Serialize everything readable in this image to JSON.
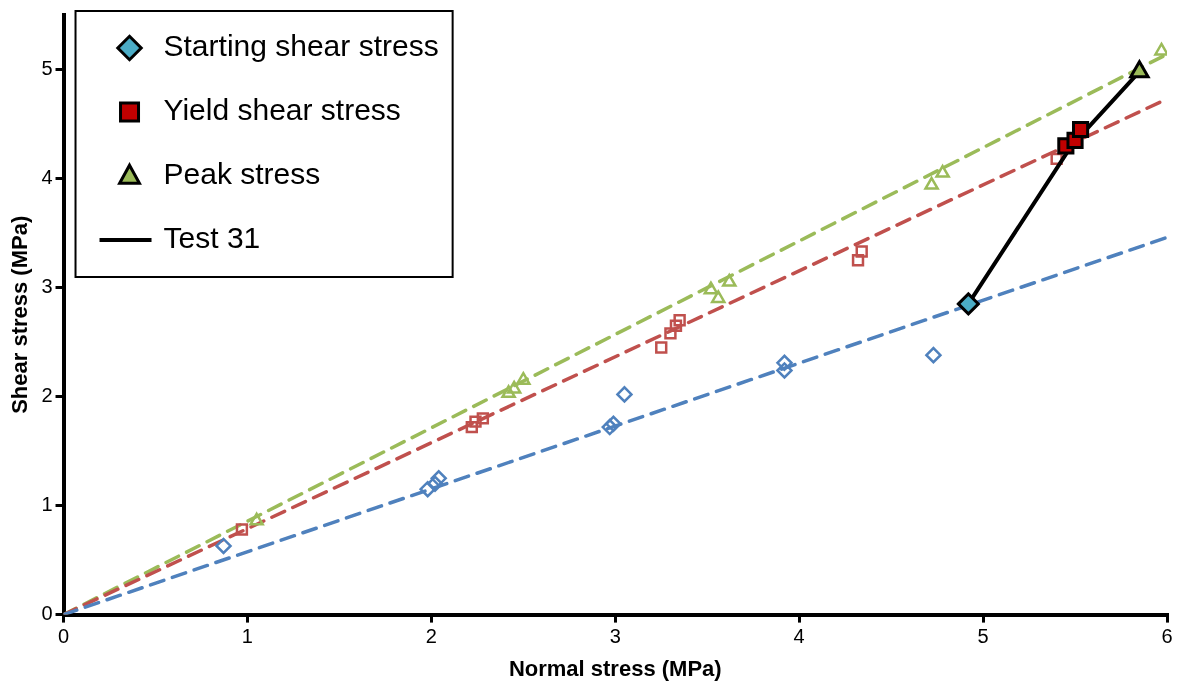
{
  "chart_data": {
    "type": "scatter",
    "xlabel": "Normal stress (MPa)",
    "ylabel": "Shear stress (MPa)",
    "xlim": [
      0,
      6
    ],
    "ylim": [
      0,
      5.5
    ],
    "xticks": [
      0,
      1,
      2,
      3,
      4,
      5,
      6
    ],
    "yticks": [
      0,
      1,
      2,
      3,
      4,
      5
    ],
    "grid": false,
    "legend": "top left",
    "series": [
      {
        "name": "Starting shear stress",
        "color": "#4bacc6",
        "marker": "diamond",
        "x": [
          4.92
        ],
        "values": [
          2.85
        ]
      },
      {
        "name": "Yield shear stress",
        "color": "#c00000",
        "marker": "square",
        "x": [
          5.45,
          5.5,
          5.53
        ],
        "values": [
          4.3,
          4.35,
          4.45
        ]
      },
      {
        "name": "Peak stress",
        "color": "#9bbb59",
        "marker": "triangle",
        "x": [
          5.85
        ],
        "values": [
          4.98
        ]
      },
      {
        "name": "Test 31",
        "type": "line",
        "color": "#000000",
        "marker": "none",
        "line_style": "solid",
        "x": [
          4.92,
          5.48,
          5.85
        ],
        "values": [
          2.85,
          4.3,
          4.98
        ]
      },
      {
        "color": "#4f81bd",
        "marker": "diamond",
        "x": [
          0.87,
          1.98,
          2.02,
          2.04,
          2.97,
          2.99,
          3.05,
          3.92,
          3.92,
          4.73
        ],
        "values": [
          0.63,
          1.15,
          1.2,
          1.25,
          1.72,
          1.75,
          2.02,
          2.24,
          2.31,
          2.38
        ]
      },
      {
        "color": "#c0504d",
        "marker": "square",
        "x": [
          0.97,
          2.22,
          2.24,
          2.28,
          3.25,
          3.3,
          3.33,
          3.35,
          4.32,
          4.34,
          5.4
        ],
        "values": [
          0.78,
          1.72,
          1.77,
          1.8,
          2.45,
          2.58,
          2.65,
          2.7,
          3.25,
          3.33,
          4.18
        ]
      },
      {
        "color": "#9bbb59",
        "marker": "triangle",
        "x": [
          1.05,
          2.42,
          2.45,
          2.5,
          3.52,
          3.56,
          3.62,
          4.72,
          4.78,
          5.97
        ],
        "values": [
          0.86,
          2.03,
          2.07,
          2.15,
          2.98,
          2.9,
          3.05,
          3.94,
          4.05,
          5.17
        ]
      },
      {
        "type": "line",
        "color": "#4f81bd",
        "marker": "none",
        "line_style": "dashed",
        "x": [
          0,
          6
        ],
        "values": [
          0,
          3.46
        ]
      },
      {
        "type": "line",
        "color": "#c0504d",
        "marker": "none",
        "line_style": "dashed",
        "x": [
          0,
          6
        ],
        "values": [
          0,
          4.73
        ]
      },
      {
        "type": "line",
        "color": "#9bbb59",
        "marker": "none",
        "line_style": "dashed",
        "x": [
          0,
          6
        ],
        "values": [
          0,
          5.14
        ]
      }
    ]
  }
}
